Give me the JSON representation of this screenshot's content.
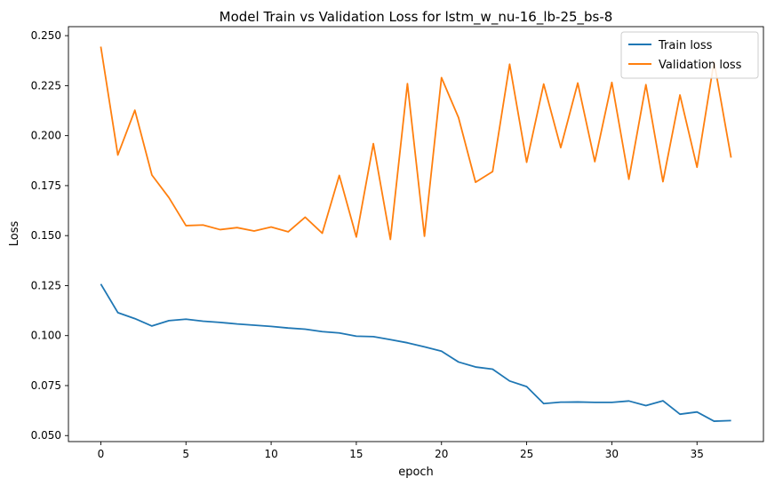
{
  "chart_data": {
    "type": "line",
    "title": "Model Train vs Validation Loss for lstm_w_nu-16_lb-25_bs-8",
    "xlabel": "epoch",
    "ylabel": "Loss",
    "xlim": [
      -1.9,
      38.9
    ],
    "ylim": [
      0.047,
      0.2545
    ],
    "xticks": [
      0,
      5,
      10,
      15,
      20,
      25,
      30,
      35
    ],
    "xtick_labels": [
      "0",
      "5",
      "10",
      "15",
      "20",
      "25",
      "30",
      "35"
    ],
    "yticks": [
      0.05,
      0.075,
      0.1,
      0.125,
      0.15,
      0.175,
      0.2,
      0.225,
      0.25
    ],
    "ytick_labels": [
      "0.050",
      "0.075",
      "0.100",
      "0.125",
      "0.150",
      "0.175",
      "0.200",
      "0.225",
      "0.250"
    ],
    "grid": false,
    "legend_position": "top-right",
    "x": [
      0,
      1,
      2,
      3,
      4,
      5,
      6,
      7,
      8,
      9,
      10,
      11,
      12,
      13,
      14,
      15,
      16,
      17,
      18,
      19,
      20,
      21,
      22,
      23,
      24,
      25,
      26,
      27,
      28,
      29,
      30,
      31,
      32,
      33,
      34,
      35,
      36,
      37
    ],
    "series": [
      {
        "name": "Train loss",
        "color": "#1f77b4",
        "values": [
          0.1258,
          0.1115,
          0.1085,
          0.1048,
          0.1075,
          0.1082,
          0.1072,
          0.1066,
          0.1058,
          0.1052,
          0.1046,
          0.1038,
          0.1032,
          0.102,
          0.1013,
          0.0997,
          0.0995,
          0.098,
          0.0964,
          0.0944,
          0.0922,
          0.0868,
          0.0843,
          0.0832,
          0.0773,
          0.0745,
          0.066,
          0.0667,
          0.0668,
          0.0666,
          0.0666,
          0.0673,
          0.065,
          0.0674,
          0.0607,
          0.0618,
          0.0572,
          0.0575
        ]
      },
      {
        "name": "Validation loss",
        "color": "#ff7f0e",
        "values": [
          0.2445,
          0.1903,
          0.2127,
          0.1803,
          0.169,
          0.155,
          0.1553,
          0.153,
          0.154,
          0.1523,
          0.1543,
          0.1519,
          0.1592,
          0.1512,
          0.1801,
          0.1493,
          0.196,
          0.1481,
          0.226,
          0.1497,
          0.229,
          0.209,
          0.1767,
          0.182,
          0.2357,
          0.1867,
          0.2258,
          0.194,
          0.2263,
          0.187,
          0.2266,
          0.1782,
          0.2255,
          0.177,
          0.2203,
          0.1842,
          0.237,
          0.189
        ]
      }
    ]
  }
}
